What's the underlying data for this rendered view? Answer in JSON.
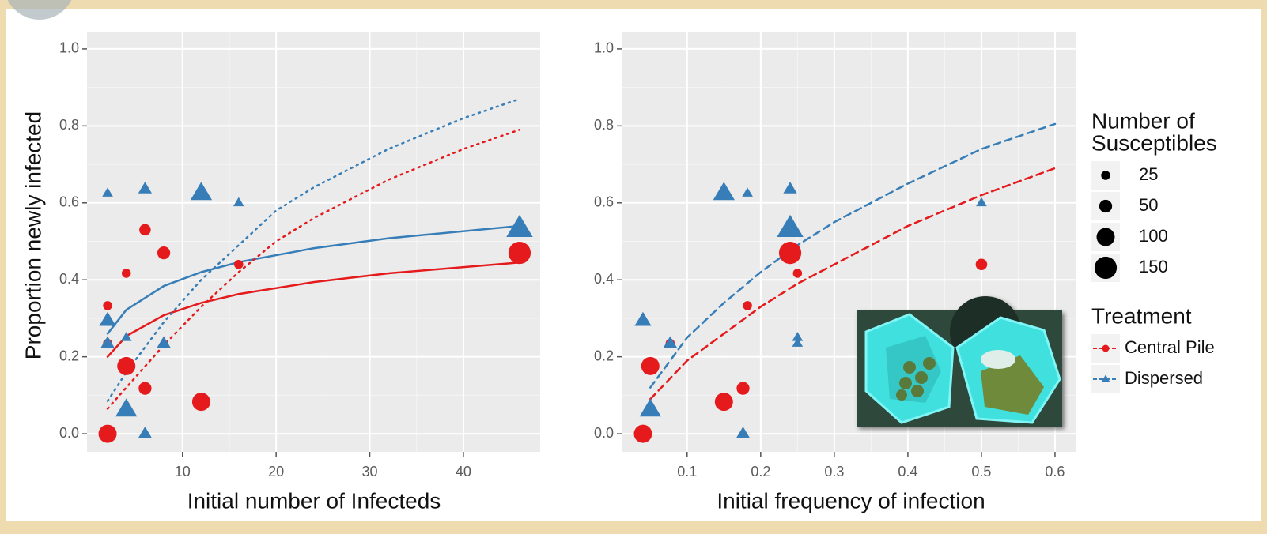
{
  "chart_data": [
    {
      "type": "scatter",
      "ylabel": "Proportion newly infected",
      "xlabel": "Initial number of Infecteds",
      "xlim": [
        -0.2,
        48.2
      ],
      "ylim": [
        -0.047,
        1.045
      ],
      "xticks": [
        10,
        20,
        30,
        40
      ],
      "yticks": [
        {
          "value": 0,
          "label": "0.0"
        },
        {
          "value": 0.2,
          "label": "0.2"
        },
        {
          "value": 0.4,
          "label": "0.4"
        },
        {
          "value": 0.6,
          "label": "0.6"
        },
        {
          "value": 0.8,
          "label": "0.8"
        },
        {
          "value": 1,
          "label": "1.0"
        }
      ],
      "grid": true,
      "series": [
        {
          "name": "Central Pile",
          "color": "#e41a1c",
          "marker": "circle",
          "x": [
            2,
            2,
            2,
            4,
            4,
            6,
            6,
            8,
            12,
            16,
            46
          ],
          "values": [
            0,
            0.333,
            0.235,
            0.417,
            0.176,
            0.53,
            0.118,
            0.47,
            0.083,
            0.44,
            0.47
          ],
          "sizes": [
            100,
            25,
            25,
            25,
            100,
            40,
            50,
            50,
            100,
            25,
            150
          ]
        },
        {
          "name": "Dispersed",
          "color": "#377eb8",
          "marker": "triangle",
          "x": [
            2,
            2,
            2,
            4,
            4,
            6,
            6,
            8,
            12,
            16,
            46
          ],
          "values": [
            0.625,
            0.294,
            0.235,
            0.25,
            0.0625,
            0.636,
            0,
            0.235,
            0.625,
            0.6,
            0.533
          ],
          "sizes": [
            25,
            60,
            40,
            25,
            100,
            40,
            40,
            40,
            100,
            25,
            150
          ]
        }
      ],
      "curves": [
        {
          "color": "#e41a1c",
          "style": "solid",
          "x": [
            2,
            4,
            8,
            12,
            16,
            24,
            32,
            46
          ],
          "values": [
            0.2,
            0.254,
            0.308,
            0.34,
            0.363,
            0.394,
            0.417,
            0.445
          ]
        },
        {
          "color": "#377eb8",
          "style": "solid",
          "x": [
            2,
            4,
            8,
            12,
            16,
            24,
            32,
            46
          ],
          "values": [
            0.26,
            0.322,
            0.384,
            0.42,
            0.446,
            0.482,
            0.508,
            0.54
          ]
        },
        {
          "color": "#e41a1c",
          "style": "dotted",
          "x": [
            2,
            4,
            8,
            12,
            16,
            20,
            24,
            32,
            40,
            46
          ],
          "values": [
            0.065,
            0.12,
            0.23,
            0.33,
            0.42,
            0.5,
            0.56,
            0.66,
            0.74,
            0.79
          ]
        },
        {
          "color": "#377eb8",
          "style": "dotted",
          "x": [
            2,
            4,
            8,
            12,
            16,
            20,
            24,
            32,
            40,
            46
          ],
          "values": [
            0.085,
            0.16,
            0.29,
            0.4,
            0.49,
            0.58,
            0.64,
            0.74,
            0.82,
            0.87
          ]
        }
      ]
    },
    {
      "type": "scatter",
      "xlabel": "Initial frequency of infection",
      "xlim": [
        0.011,
        0.628
      ],
      "ylim": [
        -0.047,
        1.045
      ],
      "xticks": [
        0.1,
        0.2,
        0.3,
        0.4,
        0.5,
        0.6
      ],
      "yticks": [
        {
          "value": 0,
          "label": "0.0"
        },
        {
          "value": 0.2,
          "label": "0.2"
        },
        {
          "value": 0.4,
          "label": "0.4"
        },
        {
          "value": 0.6,
          "label": "0.6"
        },
        {
          "value": 0.8,
          "label": "0.8"
        },
        {
          "value": 1,
          "label": "1.0"
        }
      ],
      "grid": true,
      "series": [
        {
          "name": "Central Pile",
          "color": "#e41a1c",
          "marker": "circle",
          "x": [
            0.04,
            0.05,
            0.077,
            0.15,
            0.176,
            0.182,
            0.24,
            0.25,
            0.5
          ],
          "values": [
            0,
            0.176,
            0.235,
            0.083,
            0.118,
            0.333,
            0.47,
            0.417,
            0.44
          ],
          "sizes": [
            100,
            100,
            25,
            100,
            50,
            25,
            150,
            25,
            40
          ]
        },
        {
          "name": "Dispersed",
          "color": "#377eb8",
          "marker": "triangle",
          "x": [
            0.04,
            0.05,
            0.077,
            0.15,
            0.176,
            0.182,
            0.24,
            0.24,
            0.25,
            0.25,
            0.5
          ],
          "values": [
            0.294,
            0.0625,
            0.235,
            0.625,
            0,
            0.625,
            0.636,
            0.533,
            0.25,
            0.235,
            0.6
          ],
          "sizes": [
            60,
            100,
            40,
            100,
            40,
            25,
            40,
            150,
            25,
            25,
            25
          ]
        }
      ],
      "curves": [
        {
          "color": "#e41a1c",
          "style": "dashed",
          "x": [
            0.05,
            0.1,
            0.15,
            0.2,
            0.25,
            0.3,
            0.4,
            0.5,
            0.6
          ],
          "values": [
            0.09,
            0.19,
            0.26,
            0.33,
            0.39,
            0.44,
            0.54,
            0.62,
            0.69
          ]
        },
        {
          "color": "#377eb8",
          "style": "dashed",
          "x": [
            0.05,
            0.1,
            0.15,
            0.2,
            0.25,
            0.3,
            0.4,
            0.5,
            0.6
          ],
          "values": [
            0.12,
            0.25,
            0.34,
            0.42,
            0.49,
            0.55,
            0.65,
            0.74,
            0.805
          ]
        }
      ]
    }
  ],
  "legend": {
    "size_title": [
      "Number of",
      "Susceptibles"
    ],
    "sizes": [
      25,
      50,
      100,
      150
    ],
    "treatment_title": "Treatment"
  }
}
